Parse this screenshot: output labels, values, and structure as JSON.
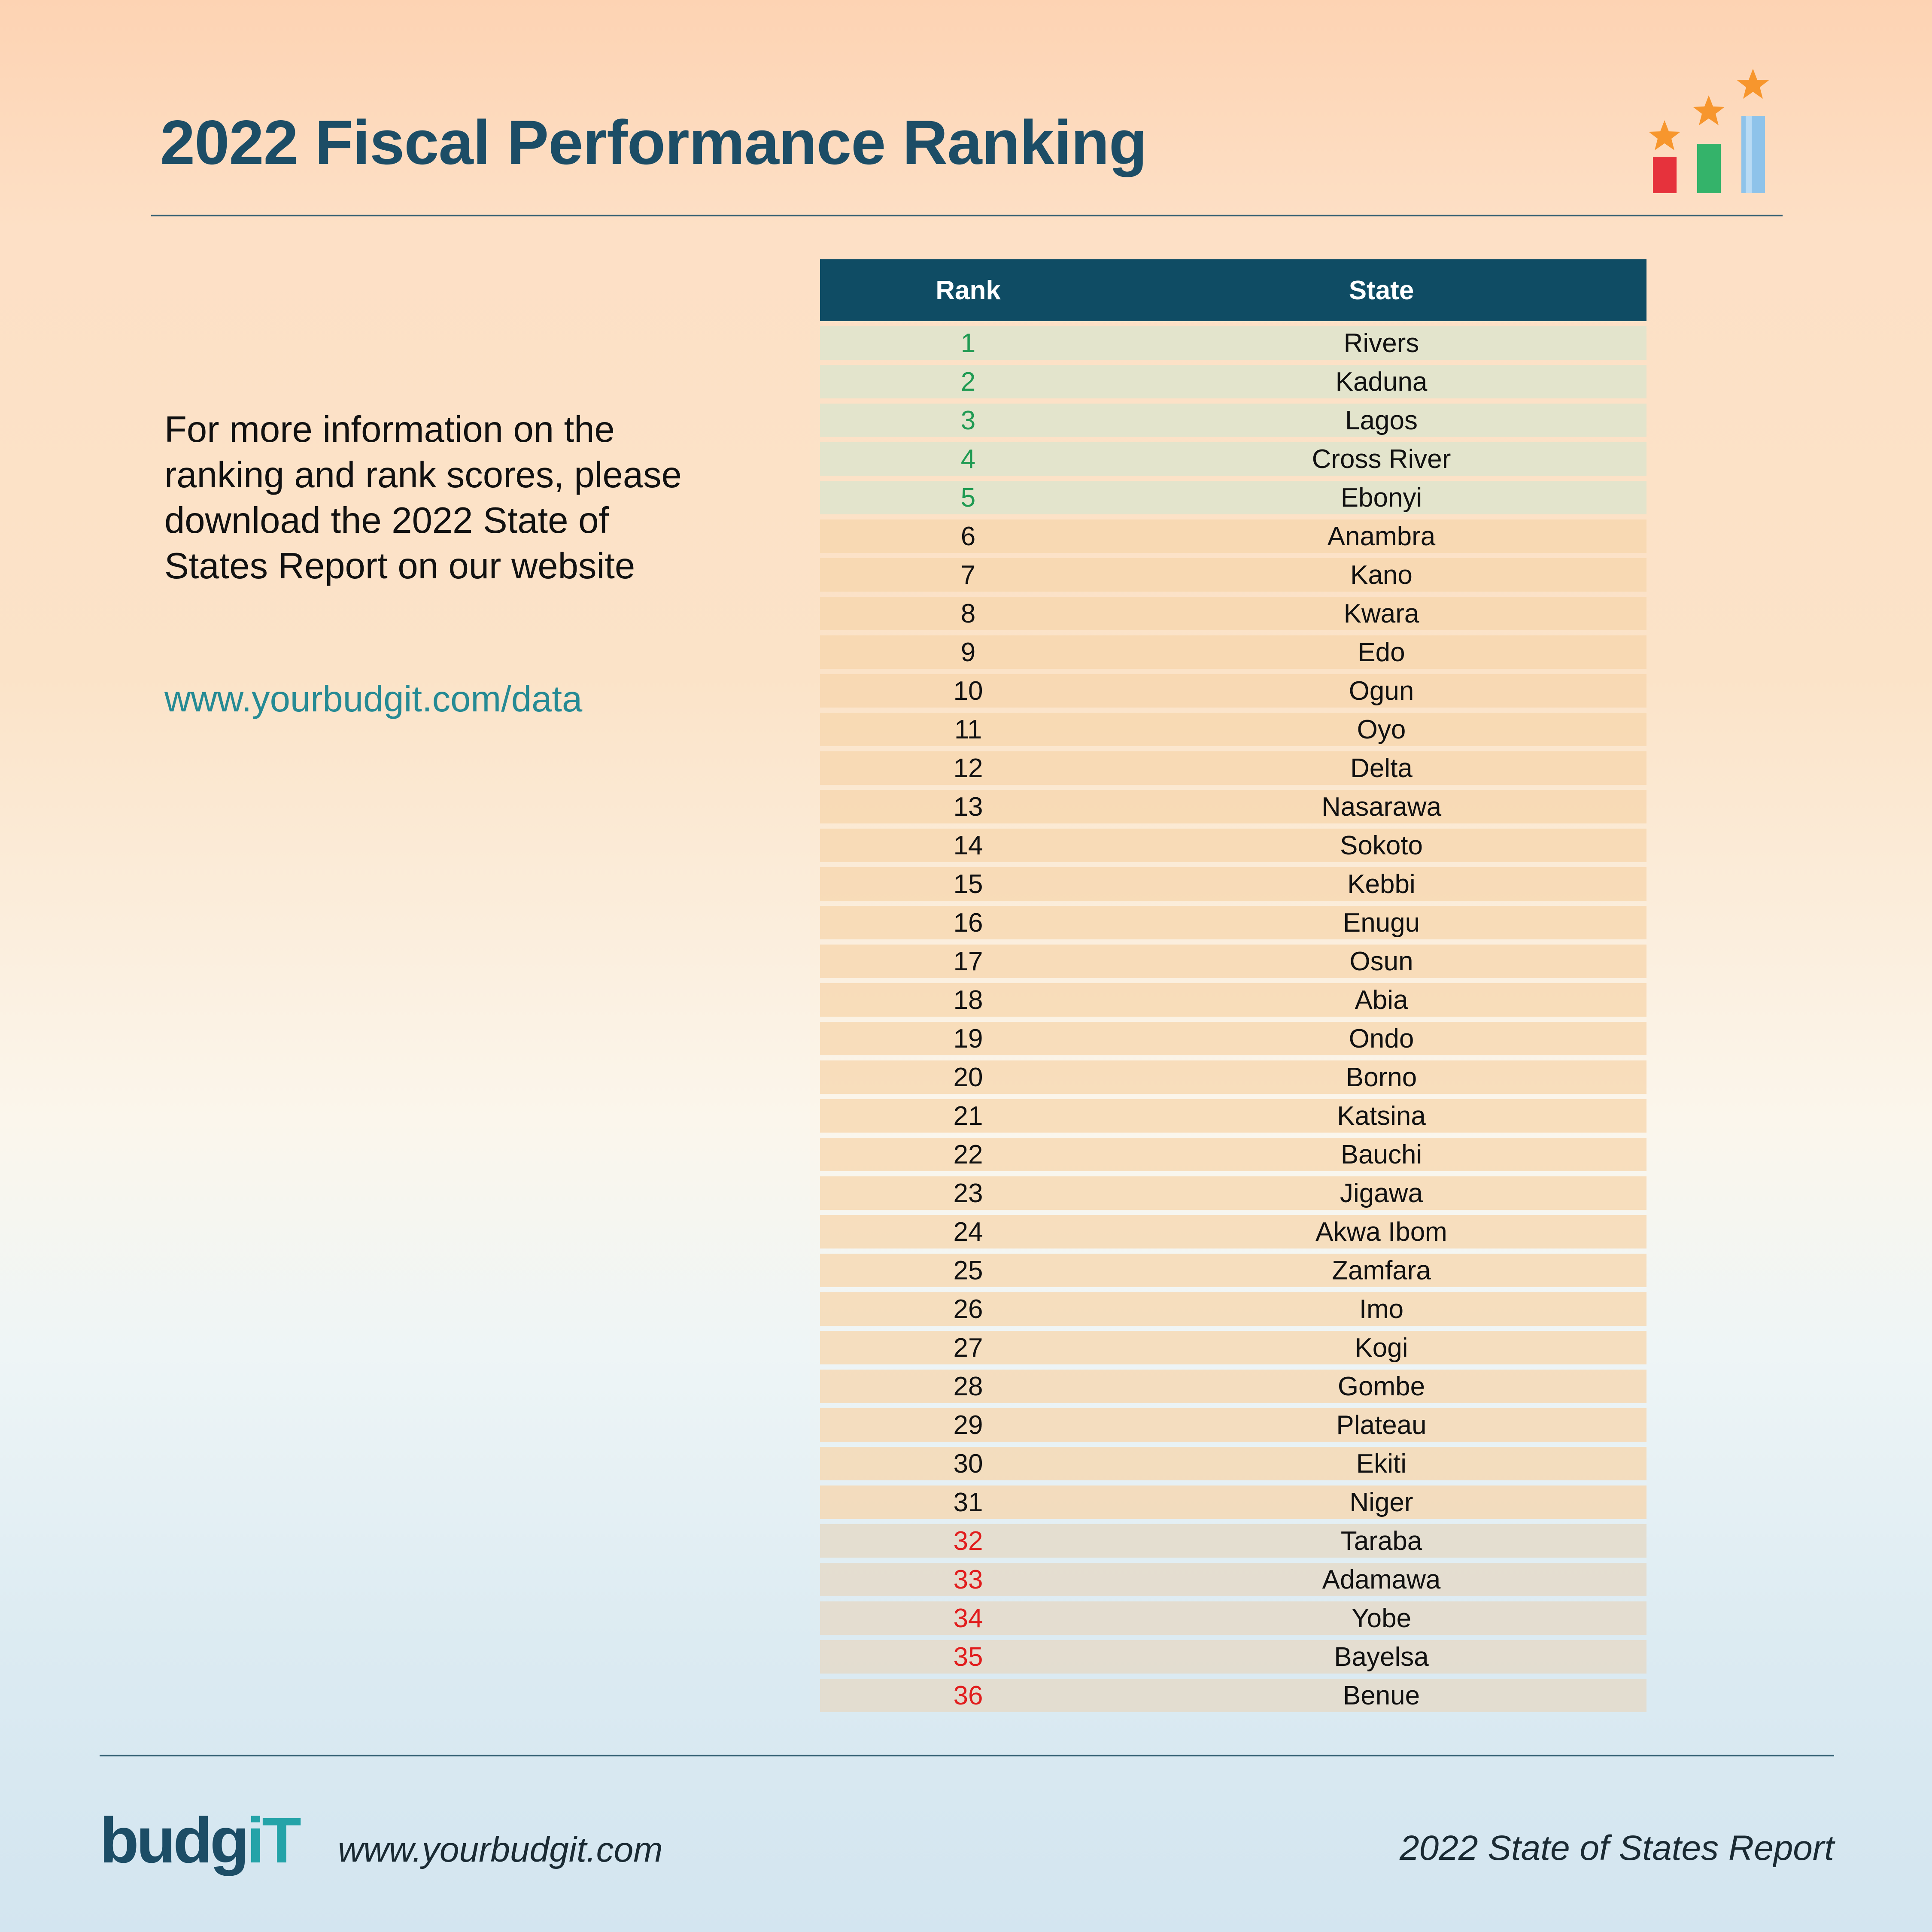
{
  "header": {
    "title": "2022 Fiscal Performance Ranking",
    "decoration_icon": "bar-chart-stars-icon"
  },
  "info": {
    "text": "For more information on the ranking and rank scores, please download the 2022 State of States Report on our website",
    "link": "www.yourbudgit.com/data"
  },
  "table": {
    "headers": {
      "rank": "Rank",
      "state": "State"
    },
    "rows": [
      {
        "rank": "1",
        "state": "Rivers"
      },
      {
        "rank": "2",
        "state": "Kaduna"
      },
      {
        "rank": "3",
        "state": "Lagos"
      },
      {
        "rank": "4",
        "state": "Cross River"
      },
      {
        "rank": "5",
        "state": "Ebonyi"
      },
      {
        "rank": "6",
        "state": "Anambra"
      },
      {
        "rank": "7",
        "state": "Kano"
      },
      {
        "rank": "8",
        "state": "Kwara"
      },
      {
        "rank": "9",
        "state": "Edo"
      },
      {
        "rank": "10",
        "state": "Ogun"
      },
      {
        "rank": "11",
        "state": "Oyo"
      },
      {
        "rank": "12",
        "state": "Delta"
      },
      {
        "rank": "13",
        "state": "Nasarawa"
      },
      {
        "rank": "14",
        "state": "Sokoto"
      },
      {
        "rank": "15",
        "state": "Kebbi"
      },
      {
        "rank": "16",
        "state": "Enugu"
      },
      {
        "rank": "17",
        "state": "Osun"
      },
      {
        "rank": "18",
        "state": "Abia"
      },
      {
        "rank": "19",
        "state": "Ondo"
      },
      {
        "rank": "20",
        "state": "Borno"
      },
      {
        "rank": "21",
        "state": "Katsina"
      },
      {
        "rank": "22",
        "state": "Bauchi"
      },
      {
        "rank": "23",
        "state": "Jigawa"
      },
      {
        "rank": "24",
        "state": "Akwa Ibom"
      },
      {
        "rank": "25",
        "state": "Zamfara"
      },
      {
        "rank": "26",
        "state": "Imo"
      },
      {
        "rank": "27",
        "state": "Kogi"
      },
      {
        "rank": "28",
        "state": "Gombe"
      },
      {
        "rank": "29",
        "state": "Plateau"
      },
      {
        "rank": "30",
        "state": "Ekiti"
      },
      {
        "rank": "31",
        "state": "Niger"
      },
      {
        "rank": "32",
        "state": "Taraba"
      },
      {
        "rank": "33",
        "state": "Adamawa"
      },
      {
        "rank": "34",
        "state": "Yobe"
      },
      {
        "rank": "35",
        "state": "Bayelsa"
      },
      {
        "rank": "36",
        "state": "Benue"
      }
    ],
    "colors": {
      "top": "#1f9a52",
      "bottom": "#e11d1d",
      "header_bg": "#0f4c64"
    }
  },
  "footer": {
    "logo_main": "budg",
    "logo_accent": "iT",
    "url": "www.yourbudgit.com",
    "report": "2022 State of States Report"
  }
}
